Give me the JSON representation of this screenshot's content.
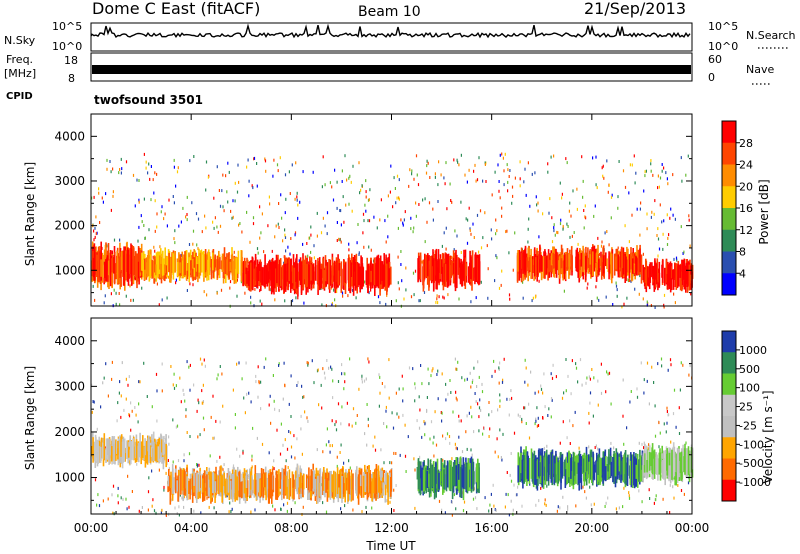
{
  "header": {
    "title": "Dome C East (fitACF)",
    "beam": "Beam 10",
    "date": "21/Sep/2013"
  },
  "summary_panels": {
    "nsky_label": "N.Sky",
    "nsearch_label": "N.Search",
    "nsky_ticks": [
      "10^5",
      "10^0"
    ],
    "nsearch_ticks": [
      "10^5",
      "10^0"
    ],
    "freq_label": "Freq.",
    "freq_unit": "[MHz]",
    "freq_ticks": [
      "18",
      "8"
    ],
    "nave_label": "Nave",
    "nave_ticks": [
      "60",
      "0"
    ],
    "cpid_label": "CPID",
    "cpid_value": "twofsound 3501"
  },
  "colors": {
    "power_scale": [
      "#0000ff",
      "#2a4fb0",
      "#2e8b57",
      "#66bb33",
      "#ffcc00",
      "#ff8c00",
      "#ff4500",
      "#ff0000"
    ],
    "velocity_scale": [
      "#ff0000",
      "#ff6a00",
      "#ffa500",
      "#c0c0c0",
      "#c8c8c8",
      "#66cc33",
      "#2e8b57",
      "#1e3caa"
    ]
  },
  "chart_data": [
    {
      "type": "heatmap",
      "panel": "power",
      "ylabel": "Slant Range [km]",
      "yticks": [
        1000,
        2000,
        3000,
        4000
      ],
      "ylim": [
        200,
        4500
      ],
      "colorbar_label": "Power [dB]",
      "colorbar_ticks": [
        "4",
        "8",
        "12",
        "16",
        "20",
        "24",
        "28"
      ],
      "bands": [
        {
          "t0": 0.0,
          "t1": 2.0,
          "r0": 500,
          "r1": 1700,
          "level": 6
        },
        {
          "t0": 2.0,
          "t1": 6.0,
          "r0": 700,
          "r1": 1500,
          "level": 5
        },
        {
          "t0": 6.0,
          "t1": 12.0,
          "r0": 400,
          "r1": 1400,
          "level": 7
        },
        {
          "t0": 13.0,
          "t1": 15.5,
          "r0": 500,
          "r1": 1500,
          "level": 7
        },
        {
          "t0": 17.0,
          "t1": 22.0,
          "r0": 700,
          "r1": 1600,
          "level": 6
        },
        {
          "t0": 22.0,
          "t1": 24.0,
          "r0": 500,
          "r1": 1300,
          "level": 7
        }
      ]
    },
    {
      "type": "heatmap",
      "panel": "velocity",
      "ylabel": "Slant Range [km]",
      "yticks": [
        1000,
        2000,
        3000,
        4000
      ],
      "ylim": [
        200,
        4500
      ],
      "xlabel": "Time UT",
      "xticks": [
        "00:00",
        "04:00",
        "08:00",
        "12:00",
        "16:00",
        "20:00",
        "00:00"
      ],
      "xlim": [
        0,
        24
      ],
      "colorbar_label": "Velocity [m s⁻¹]",
      "colorbar_ticks": [
        "1000",
        "500",
        "100",
        "25",
        "-25",
        "-100",
        "-500",
        "-1000"
      ],
      "bands": [
        {
          "t0": 0.0,
          "t1": 3.0,
          "r0": 1200,
          "r1": 2000,
          "level": 3
        },
        {
          "t0": 3.0,
          "t1": 12.0,
          "r0": 400,
          "r1": 1300,
          "level": 2
        },
        {
          "t0": 13.0,
          "t1": 15.5,
          "r0": 500,
          "r1": 1500,
          "level": 6
        },
        {
          "t0": 17.0,
          "t1": 22.0,
          "r0": 700,
          "r1": 1700,
          "level": 6
        },
        {
          "t0": 22.0,
          "t1": 24.0,
          "r0": 800,
          "r1": 1800,
          "level": 4
        }
      ]
    }
  ]
}
